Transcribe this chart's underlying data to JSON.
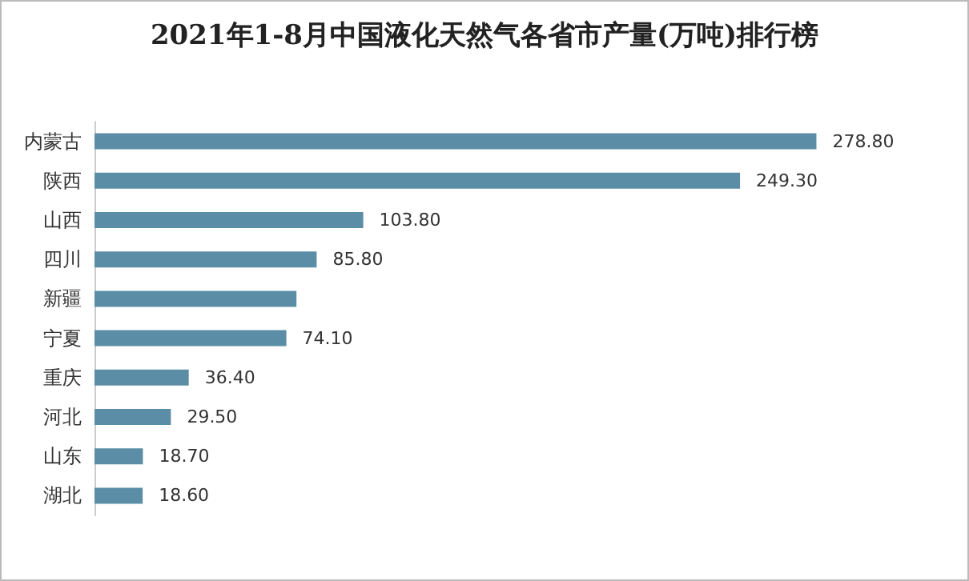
{
  "chart_data": {
    "type": "bar",
    "orientation": "horizontal",
    "title": "2021年1-8月中国液化天然气各省市产量(万吨)排行榜",
    "categories": [
      "内蒙古",
      "陕西",
      "山西",
      "四川",
      "新疆",
      "宁夏",
      "重庆",
      "河北",
      "山东",
      "湖北"
    ],
    "values": [
      278.8,
      249.3,
      103.8,
      85.8,
      78,
      74.1,
      36.4,
      29.5,
      18.7,
      18.6
    ],
    "value_labels": [
      "278.80",
      "249.30",
      "103.80",
      "85.80",
      null,
      "74.10",
      "36.40",
      "29.50",
      "18.70",
      "18.60"
    ],
    "color": "#5b8ea6"
  }
}
